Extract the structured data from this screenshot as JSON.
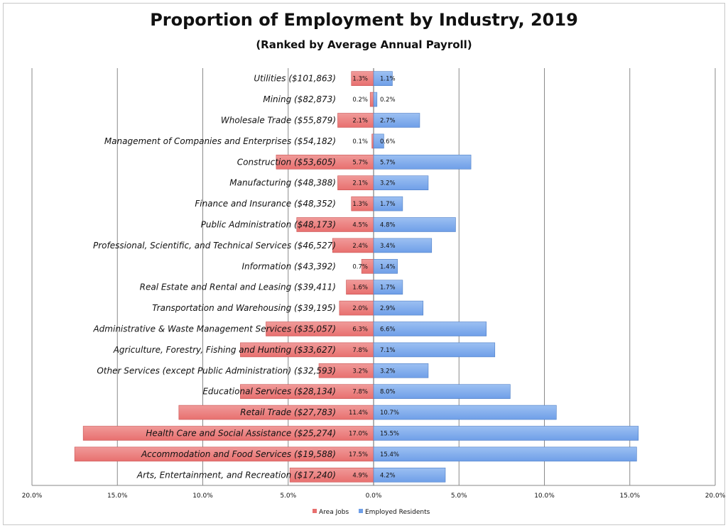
{
  "chart_data": {
    "type": "bar",
    "orientation": "horizontal-butterfly",
    "title": "Proportion of Employment by Industry, 2019",
    "subtitle": "(Ranked by Average Annual Payroll)",
    "xlim": [
      -20,
      20
    ],
    "x_ticks": [
      "20.0%",
      "15.0%",
      "10.0%",
      "5.0%",
      "0.0%",
      "5.0%",
      "10.0%",
      "15.0%",
      "20.0%"
    ],
    "x_tick_values": [
      -20,
      -15,
      -10,
      -5,
      0,
      5,
      10,
      15,
      20
    ],
    "grid": true,
    "legend_position": "bottom",
    "categories": [
      "Utilities ($101,863)",
      "Mining ($82,873)",
      "Wholesale Trade ($55,879)",
      "Management of Companies and Enterprises ($54,182)",
      "Construction ($53,605)",
      "Manufacturing ($48,388)",
      "Finance and Insurance ($48,352)",
      "Public Administration ($48,173)",
      "Professional, Scientific, and Technical Services ($46,527)",
      "Information ($43,392)",
      "Real Estate and Rental and Leasing ($39,411)",
      "Transportation and Warehousing ($39,195)",
      "Administrative & Waste Management Services ($35,057)",
      "Agriculture, Forestry, Fishing and Hunting ($33,627)",
      "Other Services (except Public Administration) ($32,593)",
      "Educational Services ($28,134)",
      "Retail Trade ($27,783)",
      "Health Care and Social Assistance ($25,274)",
      "Accommodation and Food Services ($19,588)",
      "Arts, Entertainment, and Recreation ($17,240)"
    ],
    "series": [
      {
        "name": "Area Jobs",
        "color": "#e8706f",
        "values": [
          1.3,
          0.2,
          2.1,
          0.1,
          5.7,
          2.1,
          1.3,
          4.5,
          2.4,
          0.7,
          1.6,
          2.0,
          6.3,
          7.8,
          3.2,
          7.8,
          11.4,
          17.0,
          17.5,
          4.9
        ],
        "labels": [
          "1.3%",
          "0.2%",
          "2.1%",
          "0.1%",
          "5.7%",
          "2.1%",
          "1.3%",
          "4.5%",
          "2.4%",
          "0.7%",
          "1.6%",
          "2.0%",
          "6.3%",
          "7.8%",
          "3.2%",
          "7.8%",
          "11.4%",
          "17.0%",
          "17.5%",
          "4.9%"
        ]
      },
      {
        "name": "Employed Residents",
        "color": "#6f9fe8",
        "values": [
          1.1,
          0.2,
          2.7,
          0.6,
          5.7,
          3.2,
          1.7,
          4.8,
          3.4,
          1.4,
          1.7,
          2.9,
          6.6,
          7.1,
          3.2,
          8.0,
          10.7,
          15.5,
          15.4,
          4.2
        ],
        "labels": [
          "1.1%",
          "0.2%",
          "2.7%",
          "0.6%",
          "5.7%",
          "3.2%",
          "1.7%",
          "4.8%",
          "3.4%",
          "1.4%",
          "1.7%",
          "2.9%",
          "6.6%",
          "7.1%",
          "3.2%",
          "8.0%",
          "10.7%",
          "15.5%",
          "15.4%",
          "4.2%"
        ]
      }
    ]
  }
}
